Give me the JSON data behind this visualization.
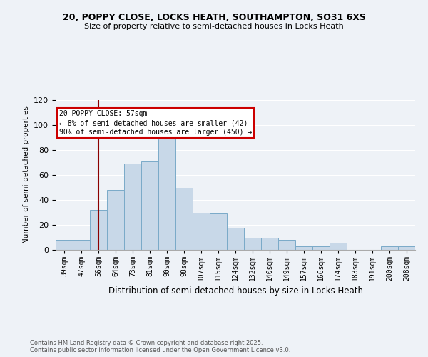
{
  "title1": "20, POPPY CLOSE, LOCKS HEATH, SOUTHAMPTON, SO31 6XS",
  "title2": "Size of property relative to semi-detached houses in Locks Heath",
  "xlabel": "Distribution of semi-detached houses by size in Locks Heath",
  "ylabel": "Number of semi-detached properties",
  "footnote": "Contains HM Land Registry data © Crown copyright and database right 2025.\nContains public sector information licensed under the Open Government Licence v3.0.",
  "bins": [
    "39sqm",
    "47sqm",
    "56sqm",
    "64sqm",
    "73sqm",
    "81sqm",
    "90sqm",
    "98sqm",
    "107sqm",
    "115sqm",
    "124sqm",
    "132sqm",
    "140sqm",
    "149sqm",
    "157sqm",
    "166sqm",
    "174sqm",
    "183sqm",
    "191sqm",
    "200sqm",
    "208sqm"
  ],
  "values": [
    8,
    8,
    32,
    48,
    69,
    71,
    90,
    50,
    30,
    29,
    18,
    10,
    10,
    8,
    3,
    3,
    6,
    0,
    0,
    3,
    3
  ],
  "property_bin_index": 2,
  "property_label": "20 POPPY CLOSE: 57sqm",
  "annotation_line1": "← 8% of semi-detached houses are smaller (42)",
  "annotation_line2": "90% of semi-detached houses are larger (450) →",
  "bar_color": "#c8d8e8",
  "bar_edge_color": "#7aaac8",
  "vline_color": "#8b0000",
  "annotation_box_color": "#ffffff",
  "annotation_box_edge": "#cc0000",
  "background_color": "#eef2f7",
  "ylim": [
    0,
    120
  ],
  "yticks": [
    0,
    20,
    40,
    60,
    80,
    100,
    120
  ]
}
